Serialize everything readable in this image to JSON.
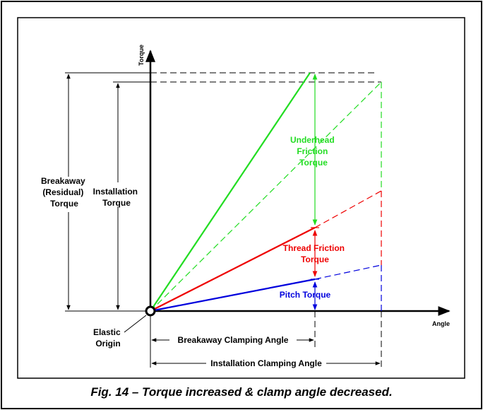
{
  "axes": {
    "y_label": "Torque",
    "x_label": "Angle"
  },
  "labels": {
    "underhead": [
      "Underhead",
      "Friction",
      "Torque"
    ],
    "thread": [
      "Thread Friction",
      "Torque"
    ],
    "pitch": "Pitch Torque",
    "breakaway": [
      "Breakaway",
      "(Residual)",
      "Torque"
    ],
    "installation": [
      "Installation",
      "Torque"
    ],
    "elastic": [
      "Elastic",
      "Origin"
    ],
    "breakaway_angle": "Breakaway Clamping Angle",
    "installation_angle": "Installation Clamping Angle"
  },
  "caption": "Fig. 14 – Torque increased & clamp angle decreased.",
  "colors": {
    "green": "#22dd22",
    "red": "#ee0000",
    "blue": "#0000dd",
    "black": "#000000"
  }
}
